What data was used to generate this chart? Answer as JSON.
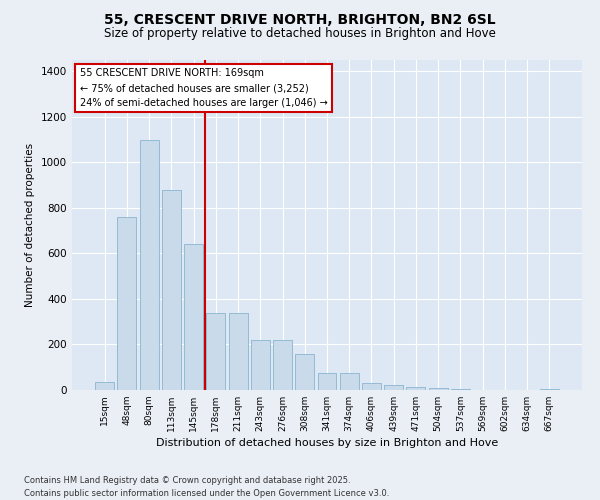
{
  "title": "55, CRESCENT DRIVE NORTH, BRIGHTON, BN2 6SL",
  "subtitle": "Size of property relative to detached houses in Brighton and Hove",
  "xlabel": "Distribution of detached houses by size in Brighton and Hove",
  "ylabel": "Number of detached properties",
  "bar_color": "#c9daea",
  "bar_edge_color": "#8ab5d0",
  "categories": [
    "15sqm",
    "48sqm",
    "80sqm",
    "113sqm",
    "145sqm",
    "178sqm",
    "211sqm",
    "243sqm",
    "276sqm",
    "308sqm",
    "341sqm",
    "374sqm",
    "406sqm",
    "439sqm",
    "471sqm",
    "504sqm",
    "537sqm",
    "569sqm",
    "602sqm",
    "634sqm",
    "667sqm"
  ],
  "values": [
    35,
    760,
    1100,
    880,
    640,
    340,
    340,
    220,
    220,
    160,
    75,
    75,
    30,
    20,
    15,
    7,
    3,
    2,
    1,
    1,
    5
  ],
  "vline_position": 4.5,
  "vline_color": "#cc0000",
  "annotation_title": "55 CRESCENT DRIVE NORTH: 169sqm",
  "annotation_line1": "← 75% of detached houses are smaller (3,252)",
  "annotation_line2": "24% of semi-detached houses are larger (1,046) →",
  "annotation_box_color": "#ffffff",
  "annotation_box_edge": "#cc0000",
  "ylim": [
    0,
    1450
  ],
  "yticks": [
    0,
    200,
    400,
    600,
    800,
    1000,
    1200,
    1400
  ],
  "plot_bg": "#dde8f4",
  "fig_bg": "#eaeff6",
  "grid_color": "#ffffff",
  "footer_line1": "Contains HM Land Registry data © Crown copyright and database right 2025.",
  "footer_line2": "Contains public sector information licensed under the Open Government Licence v3.0."
}
